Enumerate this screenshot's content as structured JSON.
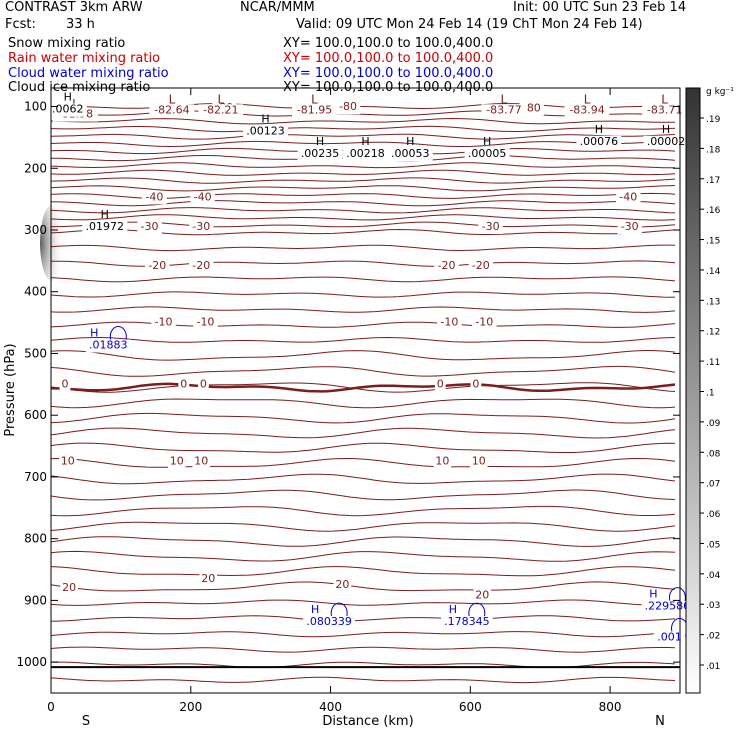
{
  "header": {
    "title": "CONTRAST  3km ARW",
    "center": "NCAR/MMM",
    "init": "Init: 00 UTC Sun 23 Feb 14",
    "fcst_label": "Fcst:",
    "fcst_value": "33 h",
    "valid": "Valid: 09 UTC Mon 24 Feb 14 (19 ChT Mon 24 Feb 14)"
  },
  "legend": [
    {
      "label": "Snow mixing ratio",
      "xy": "XY= 100.0,100.0 to 100.0,400.0",
      "color": "#000000"
    },
    {
      "label": "Rain water mixing ratio",
      "xy": "XY= 100.0,100.0 to 100.0,400.0",
      "color": "#cc0000"
    },
    {
      "label": "Cloud water mixing ratio",
      "xy": "XY= 100.0,100.0 to 100.0,400.0",
      "color": "#0000cc"
    },
    {
      "label": "Cloud ice mixing ratio",
      "xy": "XY= 100.0,100.0 to 100.0,400.0",
      "color": "#000000"
    }
  ],
  "colorbar": {
    "unit": "g kg⁻¹",
    "ticks": [
      ".19",
      ".18",
      ".17",
      ".16",
      ".15",
      ".14",
      ".13",
      ".12",
      ".11",
      ".1",
      ".09",
      ".08",
      ".07",
      ".06",
      ".05",
      ".04",
      ".03",
      ".02",
      ".01"
    ]
  },
  "chart_data": {
    "type": "contour",
    "title": "Cross section: temperature contours with hydrometeor mixing ratios",
    "xlabel": "Distance (km)",
    "ylabel": "Pressure (hPa)",
    "xlim": [
      0,
      900
    ],
    "ylim": [
      1050,
      70
    ],
    "xticks": [
      0,
      200,
      400,
      600,
      800
    ],
    "yticks": [
      100,
      200,
      300,
      400,
      500,
      600,
      700,
      800,
      900,
      1000
    ],
    "end_labels": {
      "left": "S",
      "right": "N"
    },
    "temperature_labels": [
      {
        "x": 425,
        "p": 106,
        "text": "-80"
      },
      {
        "x": 248,
        "p": 107,
        "text": "-80"
      },
      {
        "x": 688,
        "p": 108,
        "text": "-80"
      },
      {
        "x": 148,
        "p": 252,
        "text": "-40"
      },
      {
        "x": 217,
        "p": 252,
        "text": "-40"
      },
      {
        "x": 826,
        "p": 252,
        "text": "-40"
      },
      {
        "x": 141,
        "p": 300,
        "text": "-30"
      },
      {
        "x": 215,
        "p": 300,
        "text": "-30"
      },
      {
        "x": 629,
        "p": 300,
        "text": "-30"
      },
      {
        "x": 828,
        "p": 300,
        "text": "-30"
      },
      {
        "x": 152,
        "p": 363,
        "text": "-20"
      },
      {
        "x": 215,
        "p": 363,
        "text": "-20"
      },
      {
        "x": 566,
        "p": 363,
        "text": "-20"
      },
      {
        "x": 615,
        "p": 363,
        "text": "-20"
      },
      {
        "x": 161,
        "p": 455,
        "text": "-10"
      },
      {
        "x": 221,
        "p": 455,
        "text": "-10"
      },
      {
        "x": 570,
        "p": 455,
        "text": "-10"
      },
      {
        "x": 620,
        "p": 455,
        "text": "-10"
      },
      {
        "x": 20,
        "p": 555,
        "text": "0"
      },
      {
        "x": 190,
        "p": 555,
        "text": "0"
      },
      {
        "x": 218,
        "p": 555,
        "text": "0"
      },
      {
        "x": 557,
        "p": 555,
        "text": "0"
      },
      {
        "x": 608,
        "p": 555,
        "text": "0"
      },
      {
        "x": 24,
        "p": 680,
        "text": "10"
      },
      {
        "x": 180,
        "p": 680,
        "text": "10"
      },
      {
        "x": 215,
        "p": 680,
        "text": "10"
      },
      {
        "x": 560,
        "p": 680,
        "text": "10"
      },
      {
        "x": 612,
        "p": 680,
        "text": "10"
      },
      {
        "x": 26,
        "p": 885,
        "text": "20"
      },
      {
        "x": 225,
        "p": 870,
        "text": "20"
      },
      {
        "x": 417,
        "p": 880,
        "text": "20"
      },
      {
        "x": 617,
        "p": 897,
        "text": "20"
      }
    ],
    "minima": [
      {
        "x": 35,
        "p": 102,
        "value": "-81.98"
      },
      {
        "x": 173,
        "p": 95,
        "value": "-82.64"
      },
      {
        "x": 243,
        "p": 95,
        "value": "-82.21"
      },
      {
        "x": 377,
        "p": 95,
        "value": "-81.95"
      },
      {
        "x": 648,
        "p": 95,
        "value": "-83.77"
      },
      {
        "x": 767,
        "p": 95,
        "value": "-83.94"
      },
      {
        "x": 878,
        "p": 95,
        "value": "-83.71"
      }
    ],
    "maxima_small": [
      {
        "x": 24,
        "p": 110,
        "value": ".0062"
      },
      {
        "x": 307,
        "p": 145,
        "value": ".00123"
      },
      {
        "x": 385,
        "p": 182,
        "value": ".00235"
      },
      {
        "x": 450,
        "p": 182,
        "value": ".00218"
      },
      {
        "x": 514,
        "p": 182,
        "value": ".00053"
      },
      {
        "x": 624,
        "p": 182,
        "value": ".00005"
      },
      {
        "x": 784,
        "p": 162,
        "value": ".00076"
      },
      {
        "x": 880,
        "p": 162,
        "value": ".00002"
      },
      {
        "x": 77,
        "p": 300,
        "value": ".01972"
      }
    ],
    "cloud_water_maxima": [
      {
        "x": 82,
        "p": 492,
        "value": ".01883"
      },
      {
        "x": 398,
        "p": 940,
        "value": ".080339"
      },
      {
        "x": 595,
        "p": 940,
        "value": ".178345"
      },
      {
        "x": 882,
        "p": 915,
        "value": ".229586"
      },
      {
        "x": 885,
        "p": 965,
        "value": ".001"
      }
    ],
    "freezing_level_p": 555
  }
}
